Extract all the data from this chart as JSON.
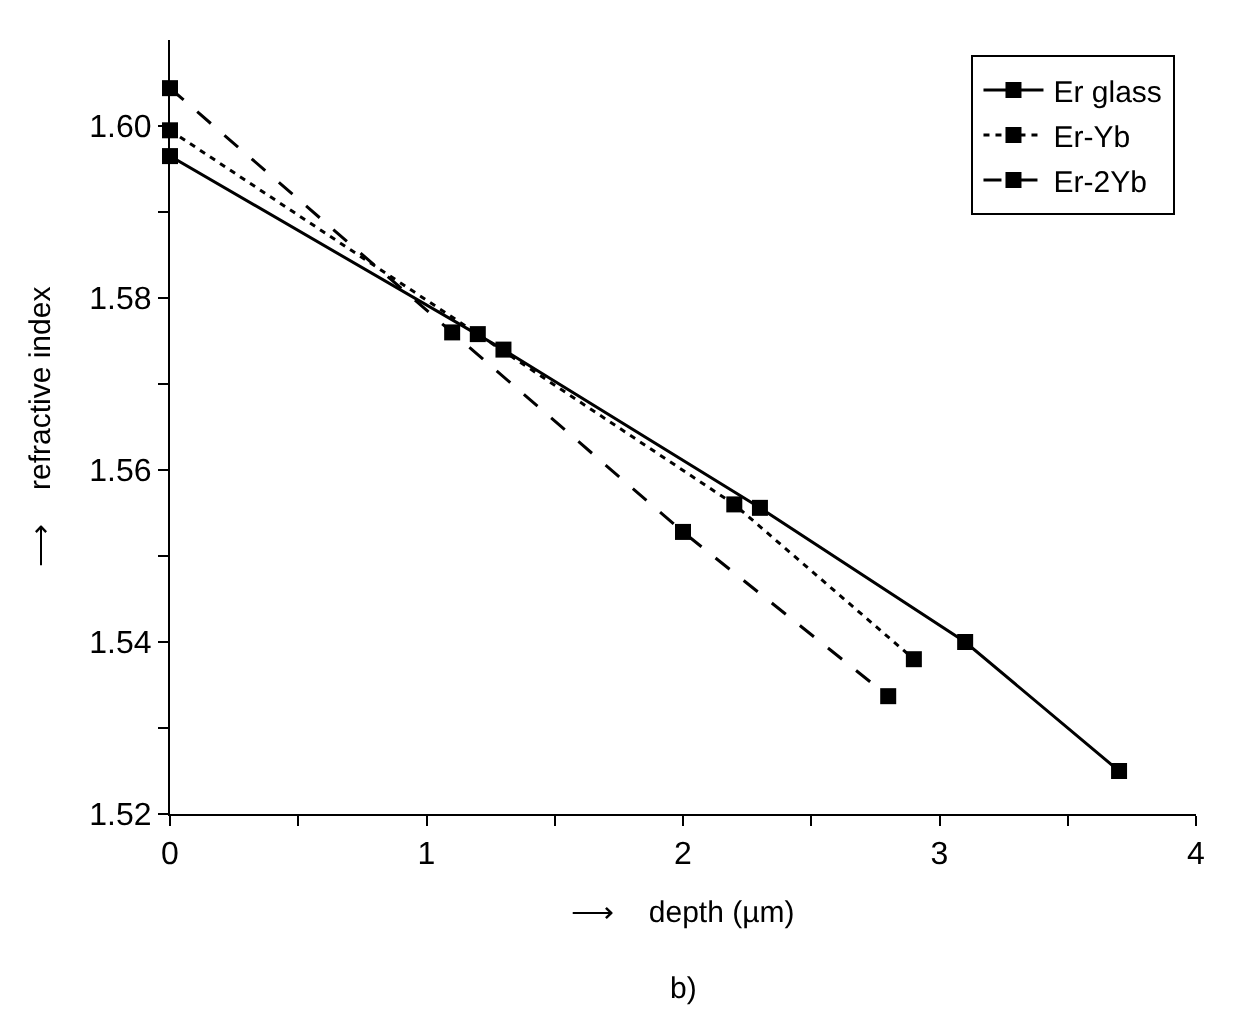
{
  "chart_data": {
    "type": "line",
    "xlabel": "⟶    depth (µm)",
    "ylabel": "⟶    refractive index",
    "annotations": [
      "b)"
    ],
    "xlim": [
      0,
      4
    ],
    "ylim": [
      1.52,
      1.61
    ],
    "xticks": [
      0,
      {
        "value": 0.5,
        "label": null
      },
      1,
      {
        "value": 1.5,
        "label": null
      },
      2,
      {
        "value": 2.5,
        "label": null
      },
      3,
      {
        "value": 3.5,
        "label": null
      },
      4
    ],
    "yticks": [
      {
        "value": 1.52,
        "label": "1.52"
      },
      {
        "value": 1.53,
        "label": null
      },
      {
        "value": 1.54,
        "label": "1.54"
      },
      {
        "value": 1.55,
        "label": null
      },
      {
        "value": 1.56,
        "label": "1.56"
      },
      {
        "value": 1.57,
        "label": null
      },
      {
        "value": 1.58,
        "label": "1.58"
      },
      {
        "value": 1.59,
        "label": null
      },
      {
        "value": 1.6,
        "label": "1.60"
      }
    ],
    "legend": "top right",
    "marker": "square",
    "series": [
      {
        "name": "Er glass",
        "color": "#000000",
        "line_style": "solid",
        "x": [
          0,
          1.3,
          2.3,
          3.1,
          3.7
        ],
        "values": [
          1.5965,
          1.574,
          1.5556,
          1.54,
          1.525
        ]
      },
      {
        "name": "Er-Yb",
        "color": "#000000",
        "line_style": "dotted",
        "x": [
          0,
          1.2,
          2.2,
          2.9
        ],
        "values": [
          1.5995,
          1.5758,
          1.556,
          1.538
        ]
      },
      {
        "name": "Er-2Yb",
        "color": "#000000",
        "line_style": "dashed",
        "x": [
          0,
          1.1,
          2.0,
          2.8
        ],
        "values": [
          1.6044,
          1.576,
          1.5528,
          1.5337
        ]
      }
    ]
  }
}
